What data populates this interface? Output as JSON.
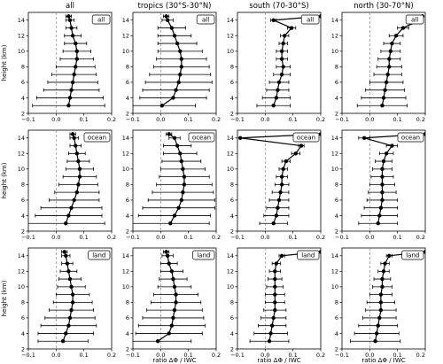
{
  "figure": {
    "col_titles": [
      "all",
      "tropics (30°S-30°N)",
      "south (70-30°S)",
      "north (30-70°N)"
    ],
    "row_labels": [
      "all",
      "ocean",
      "land"
    ],
    "ylabel": "height (km)",
    "xlabel": "ratio ΔΦ / IWC"
  },
  "chart_data": {
    "type": "scatter",
    "panel_type": "profile with horizontal error bars",
    "x_ticks": [
      -0.1,
      0.0,
      0.1,
      0.2
    ],
    "x_tick_labels": [
      "−0.1",
      "0.0",
      "0.1",
      "0.2"
    ],
    "y_ticks": [
      2,
      4,
      6,
      8,
      10,
      12,
      14
    ],
    "xlim": [
      -0.1,
      0.2
    ],
    "ylim": [
      2,
      15
    ],
    "heights": [
      14.5,
      14,
      13,
      12,
      11,
      10,
      9,
      8,
      7,
      6,
      5,
      4,
      3
    ],
    "reference_line_x": 0.0,
    "panels": [
      {
        "row": "all",
        "col": "all",
        "x": [
          0.045,
          0.05,
          0.055,
          0.06,
          0.07,
          0.075,
          0.075,
          0.07,
          0.065,
          0.06,
          0.055,
          0.05,
          0.045
        ],
        "err": [
          0.01,
          0.015,
          0.02,
          0.03,
          0.04,
          0.05,
          0.06,
          0.07,
          0.08,
          0.09,
          0.1,
          0.12,
          0.13
        ]
      },
      {
        "row": "all",
        "col": "tropics (30°S-30°N)",
        "x": [
          0.02,
          0.025,
          0.04,
          0.05,
          0.06,
          0.07,
          0.075,
          0.075,
          0.07,
          0.065,
          0.055,
          0.045,
          0.005
        ],
        "err": [
          0.01,
          0.02,
          0.05,
          0.06,
          0.07,
          0.08,
          0.09,
          0.1,
          0.11,
          0.12,
          0.12,
          0.12,
          0.12
        ]
      },
      {
        "row": "all",
        "col": "south (70-30°S)",
        "x": [
          0.2,
          0.03,
          0.095,
          0.07,
          0.065,
          0.06,
          0.06,
          0.065,
          0.06,
          0.05,
          0.045,
          0.04,
          0.03
        ],
        "err": [
          0.0,
          0.01,
          0.015,
          0.015,
          0.015,
          0.02,
          0.02,
          0.025,
          0.03,
          0.035,
          0.04,
          0.05,
          0.06
        ]
      },
      {
        "row": "all",
        "col": "north (30-70°N)",
        "x": [
          0.19,
          0.18,
          0.12,
          0.095,
          0.08,
          0.075,
          0.07,
          0.07,
          0.065,
          0.06,
          0.055,
          0.05,
          0.045
        ],
        "err": [
          0.0,
          0.01,
          0.02,
          0.025,
          0.03,
          0.035,
          0.04,
          0.045,
          0.05,
          0.06,
          0.07,
          0.08,
          0.09
        ]
      },
      {
        "row": "ocean",
        "col": "all",
        "x": [
          0.06,
          0.065,
          0.07,
          0.075,
          0.08,
          0.085,
          0.085,
          0.08,
          0.075,
          0.065,
          0.055,
          0.045,
          0.035
        ],
        "err": [
          0.01,
          0.015,
          0.02,
          0.03,
          0.04,
          0.05,
          0.06,
          0.07,
          0.08,
          0.09,
          0.11,
          0.12,
          0.14
        ]
      },
      {
        "row": "ocean",
        "col": "tropics (30°S-30°N)",
        "x": [
          0.03,
          0.05,
          0.06,
          0.07,
          0.075,
          0.08,
          0.085,
          0.085,
          0.08,
          0.075,
          0.065,
          0.05,
          0.035
        ],
        "err": [
          0.01,
          0.02,
          0.05,
          0.06,
          0.07,
          0.08,
          0.09,
          0.1,
          0.11,
          0.12,
          0.13,
          0.13,
          0.14
        ]
      },
      {
        "row": "ocean",
        "col": "south (70-30°S)",
        "x": [
          0.2,
          -0.09,
          0.13,
          0.11,
          0.075,
          0.065,
          0.06,
          0.06,
          0.055,
          0.05,
          0.045,
          0.04,
          0.03
        ],
        "err": [
          0.0,
          0.0,
          0.01,
          0.015,
          0.015,
          0.015,
          0.02,
          0.025,
          0.03,
          0.035,
          0.04,
          0.045,
          0.05
        ]
      },
      {
        "row": "ocean",
        "col": "north (30-70°N)",
        "x": [
          0.2,
          -0.02,
          0.08,
          0.06,
          0.05,
          0.045,
          0.045,
          0.045,
          0.045,
          0.045,
          0.04,
          0.035,
          0.03
        ],
        "err": [
          0.0,
          0.02,
          0.02,
          0.025,
          0.03,
          0.035,
          0.04,
          0.045,
          0.05,
          0.055,
          0.06,
          0.065,
          0.07
        ]
      },
      {
        "row": "land",
        "col": "all",
        "x": [
          0.03,
          0.035,
          0.04,
          0.045,
          0.05,
          0.055,
          0.06,
          0.06,
          0.055,
          0.05,
          0.045,
          0.035,
          0.025
        ],
        "err": [
          0.01,
          0.015,
          0.02,
          0.03,
          0.04,
          0.05,
          0.06,
          0.07,
          0.08,
          0.09,
          0.1,
          0.1,
          0.09
        ]
      },
      {
        "row": "land",
        "col": "tropics (30°S-30°N)",
        "x": [
          0.02,
          0.025,
          0.03,
          0.04,
          0.045,
          0.05,
          0.055,
          0.055,
          0.05,
          0.045,
          0.04,
          0.03,
          -0.01
        ],
        "err": [
          0.01,
          0.02,
          0.03,
          0.04,
          0.05,
          0.06,
          0.08,
          0.09,
          0.1,
          0.11,
          0.12,
          0.12,
          0.12
        ]
      },
      {
        "row": "land",
        "col": "south (70-30°S)",
        "x": [
          0.2,
          0.06,
          0.04,
          0.035,
          0.035,
          0.035,
          0.035,
          0.035,
          0.035,
          0.03,
          0.025,
          0.02,
          0.015
        ],
        "err": [
          0.0,
          0.01,
          0.015,
          0.02,
          0.025,
          0.03,
          0.035,
          0.035,
          0.04,
          0.045,
          0.05,
          0.06,
          0.07
        ]
      },
      {
        "row": "land",
        "col": "north (30-70°N)",
        "x": [
          0.2,
          0.07,
          0.055,
          0.05,
          0.045,
          0.045,
          0.04,
          0.04,
          0.04,
          0.035,
          0.03,
          0.025,
          0.02
        ],
        "err": [
          0.0,
          0.01,
          0.015,
          0.02,
          0.03,
          0.035,
          0.04,
          0.05,
          0.055,
          0.06,
          0.07,
          0.08,
          0.09
        ]
      }
    ]
  }
}
